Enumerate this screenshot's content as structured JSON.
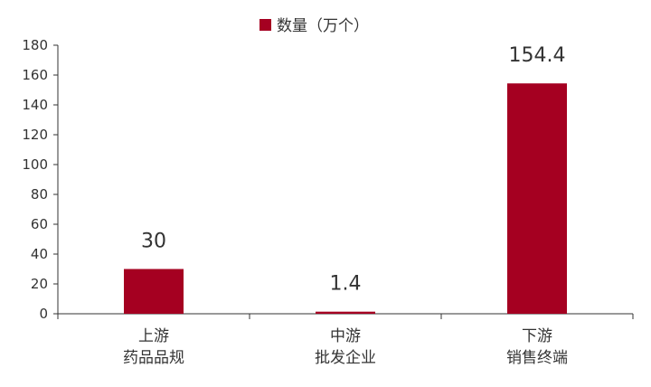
{
  "chart_data": {
    "type": "bar",
    "categories": [
      [
        "上游",
        "药品品规"
      ],
      [
        "中游",
        "批发企业"
      ],
      [
        "下游",
        "销售终端"
      ]
    ],
    "series": [
      {
        "name": "数量（万个）",
        "values": [
          30,
          1.4,
          154.4
        ],
        "color": "#a50021"
      }
    ],
    "data_labels": [
      "30",
      "1.4",
      "154.4"
    ],
    "ylim": [
      0,
      180
    ],
    "yticks": [
      0,
      20,
      40,
      60,
      80,
      100,
      120,
      140,
      160,
      180
    ],
    "legend_position": "top-center",
    "grid": false,
    "title": "",
    "xlabel": "",
    "ylabel": ""
  }
}
